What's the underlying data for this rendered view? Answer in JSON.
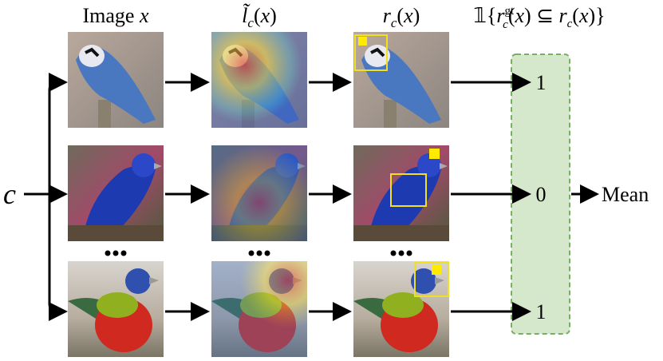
{
  "input": "c",
  "columns": [
    {
      "label": [
        "Image ",
        "x"
      ]
    },
    {
      "label": [
        "l̃",
        "c",
        "(",
        "x",
        ")"
      ]
    },
    {
      "label": [
        "r",
        "c",
        "(",
        "x",
        ")"
      ]
    }
  ],
  "indicator": [
    "𝟙{",
    "r",
    "gt",
    "c",
    "(",
    "x",
    ") ⊆ ",
    "r",
    "c",
    "(",
    "x",
    ")}"
  ],
  "outputs": [
    "1",
    "0",
    "1"
  ],
  "aggregate": "Mean"
}
